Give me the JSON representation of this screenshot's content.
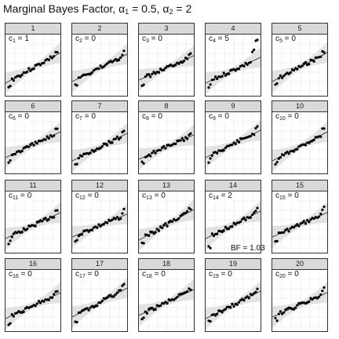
{
  "title": {
    "prefix": "Marginal Bayes Factor,",
    "alpha1_symbol": "α",
    "alpha1_sub": "1",
    "alpha1_value": "= 0.5,",
    "alpha2_symbol": "α",
    "alpha2_sub": "2",
    "alpha2_value": "= 2"
  },
  "bf_label": "BF = 1.03",
  "colors": {
    "strip_bg": "#d9d9d9",
    "grid": "#ebebeb",
    "band": "#d9d9d9",
    "line": "#333333",
    "point": "#000000"
  },
  "chart_data": {
    "type": "scatter",
    "layout": "facet-grid 4x5",
    "grid": true,
    "confidence_band": true,
    "reference_line": true,
    "panels": [
      {
        "label": "1",
        "c_sub": "1",
        "c_value": "1"
      },
      {
        "label": "2",
        "c_sub": "2",
        "c_value": "0"
      },
      {
        "label": "3",
        "c_sub": "3",
        "c_value": "0"
      },
      {
        "label": "4",
        "c_sub": "4",
        "c_value": "5"
      },
      {
        "label": "5",
        "c_sub": "5",
        "c_value": "0"
      },
      {
        "label": "6",
        "c_sub": "6",
        "c_value": "0"
      },
      {
        "label": "7",
        "c_sub": "7",
        "c_value": "0"
      },
      {
        "label": "8",
        "c_sub": "8",
        "c_value": "0"
      },
      {
        "label": "9",
        "c_sub": "9",
        "c_value": "0"
      },
      {
        "label": "10",
        "c_sub": "10",
        "c_value": "0"
      },
      {
        "label": "11",
        "c_sub": "11",
        "c_value": "0"
      },
      {
        "label": "12",
        "c_sub": "12",
        "c_value": "0"
      },
      {
        "label": "13",
        "c_sub": "13",
        "c_value": "0"
      },
      {
        "label": "14",
        "c_sub": "14",
        "c_value": "2"
      },
      {
        "label": "15",
        "c_sub": "15",
        "c_value": "0"
      },
      {
        "label": "16",
        "c_sub": "16",
        "c_value": "0"
      },
      {
        "label": "17",
        "c_sub": "17",
        "c_value": "0"
      },
      {
        "label": "18",
        "c_sub": "18",
        "c_value": "0"
      },
      {
        "label": "19",
        "c_sub": "19",
        "c_value": "0"
      },
      {
        "label": "20",
        "c_sub": "20",
        "c_value": "0"
      }
    ]
  }
}
